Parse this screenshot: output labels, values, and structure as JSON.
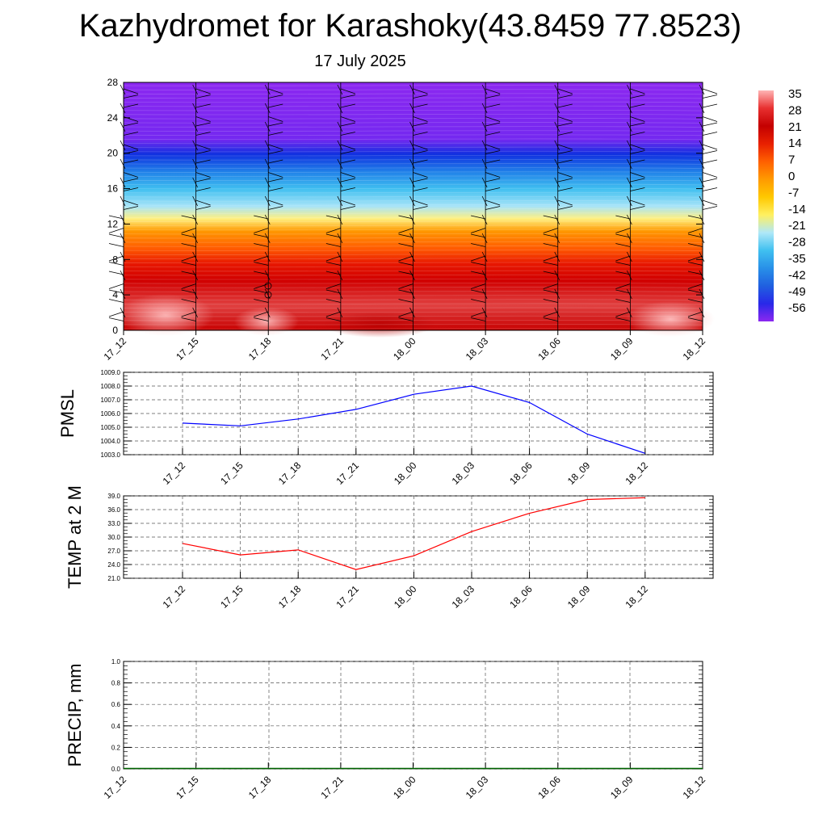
{
  "title": "Kazhydromet for Karashoky(43.8459 77.8523)",
  "subtitle": "17 July 2025",
  "colorbar": {
    "labels": [
      "35",
      "28",
      "21",
      "14",
      "7",
      "0",
      "-7",
      "-14",
      "-21",
      "-28",
      "-35",
      "-42",
      "-49",
      "-56"
    ],
    "stops": [
      "#ffb4b4",
      "#e83030",
      "#c40000",
      "#e82000",
      "#ff6000",
      "#ff9a00",
      "#ffc800",
      "#fff060",
      "#b0e8f8",
      "#40c0f0",
      "#2890e8",
      "#2060e0",
      "#2828e8",
      "#8c28f0"
    ]
  },
  "chart_data": [
    {
      "type": "heatmap",
      "name": "upper-air-temperature",
      "categories": [
        "17_12",
        "17_15",
        "17_18",
        "17_21",
        "18_00",
        "18_03",
        "18_06",
        "18_09",
        "18_12"
      ],
      "ylim": [
        0,
        28
      ],
      "yticks": [
        "0",
        "4",
        "8",
        "12",
        "16",
        "20",
        "24",
        "28"
      ],
      "levels": [
        0,
        4,
        8,
        12,
        13.5,
        16,
        20,
        24,
        28
      ],
      "values": [
        [
          33,
          35,
          36,
          30,
          26,
          30,
          35,
          38,
          38
        ],
        [
          28,
          28,
          29,
          27,
          25,
          26,
          27,
          29,
          29
        ],
        [
          21,
          21,
          21,
          21,
          21,
          21,
          21,
          21,
          21
        ],
        [
          5,
          5,
          5,
          5,
          5,
          6,
          7,
          8,
          8
        ],
        [
          -13,
          -13,
          -13,
          -13,
          -13,
          -13,
          -12,
          -12,
          -12
        ],
        [
          -30,
          -30,
          -30,
          -30,
          -30,
          -30,
          -30,
          -30,
          -30
        ],
        [
          -48,
          -48,
          -48,
          -48,
          -48,
          -48,
          -48,
          -48,
          -48
        ],
        [
          -58,
          -58,
          -58,
          -58,
          -58,
          -58,
          -58,
          -58,
          -58
        ],
        [
          -60,
          -60,
          -60,
          -60,
          -60,
          -60,
          -60,
          -60,
          -60
        ]
      ]
    },
    {
      "type": "line",
      "name": "pmsl",
      "ylabel": "PMSL",
      "categories": [
        "17_12",
        "17_15",
        "17_18",
        "17_21",
        "18_00",
        "18_03",
        "18_06",
        "18_09",
        "18_12"
      ],
      "values": [
        1005.3,
        1005.1,
        1005.6,
        1006.3,
        1007.4,
        1008.0,
        1006.8,
        1004.5,
        1003.1
      ],
      "ylim": [
        1003.0,
        1009.0
      ],
      "yticks": [
        "1003.0",
        "1004.0",
        "1005.0",
        "1006.0",
        "1007.0",
        "1008.0",
        "1009.0"
      ],
      "color": "#0000ff"
    },
    {
      "type": "line",
      "name": "temp-2m",
      "ylabel": "TEMP at 2 M",
      "categories": [
        "17_12",
        "17_15",
        "17_18",
        "17_21",
        "18_00",
        "18_03",
        "18_06",
        "18_09",
        "18_12"
      ],
      "values": [
        28.6,
        26.1,
        27.2,
        22.9,
        25.9,
        31.2,
        35.2,
        38.2,
        38.6
      ],
      "ylim": [
        21.0,
        39.0
      ],
      "yticks": [
        "21.0",
        "24.0",
        "27.0",
        "30.0",
        "33.0",
        "36.0",
        "39.0"
      ],
      "color": "#ff0000"
    },
    {
      "type": "line",
      "name": "precip",
      "ylabel": "PRECIP, mm",
      "categories": [
        "17_12",
        "17_15",
        "17_18",
        "17_21",
        "18_00",
        "18_03",
        "18_06",
        "18_09",
        "18_12"
      ],
      "values": [
        0,
        0,
        0,
        0,
        0,
        0,
        0,
        0,
        0
      ],
      "ylim": [
        0,
        1.0
      ],
      "yticks": [
        "0.0",
        "0.2",
        "0.4",
        "0.6",
        "0.8",
        "1.0"
      ],
      "color": "#006400"
    }
  ]
}
